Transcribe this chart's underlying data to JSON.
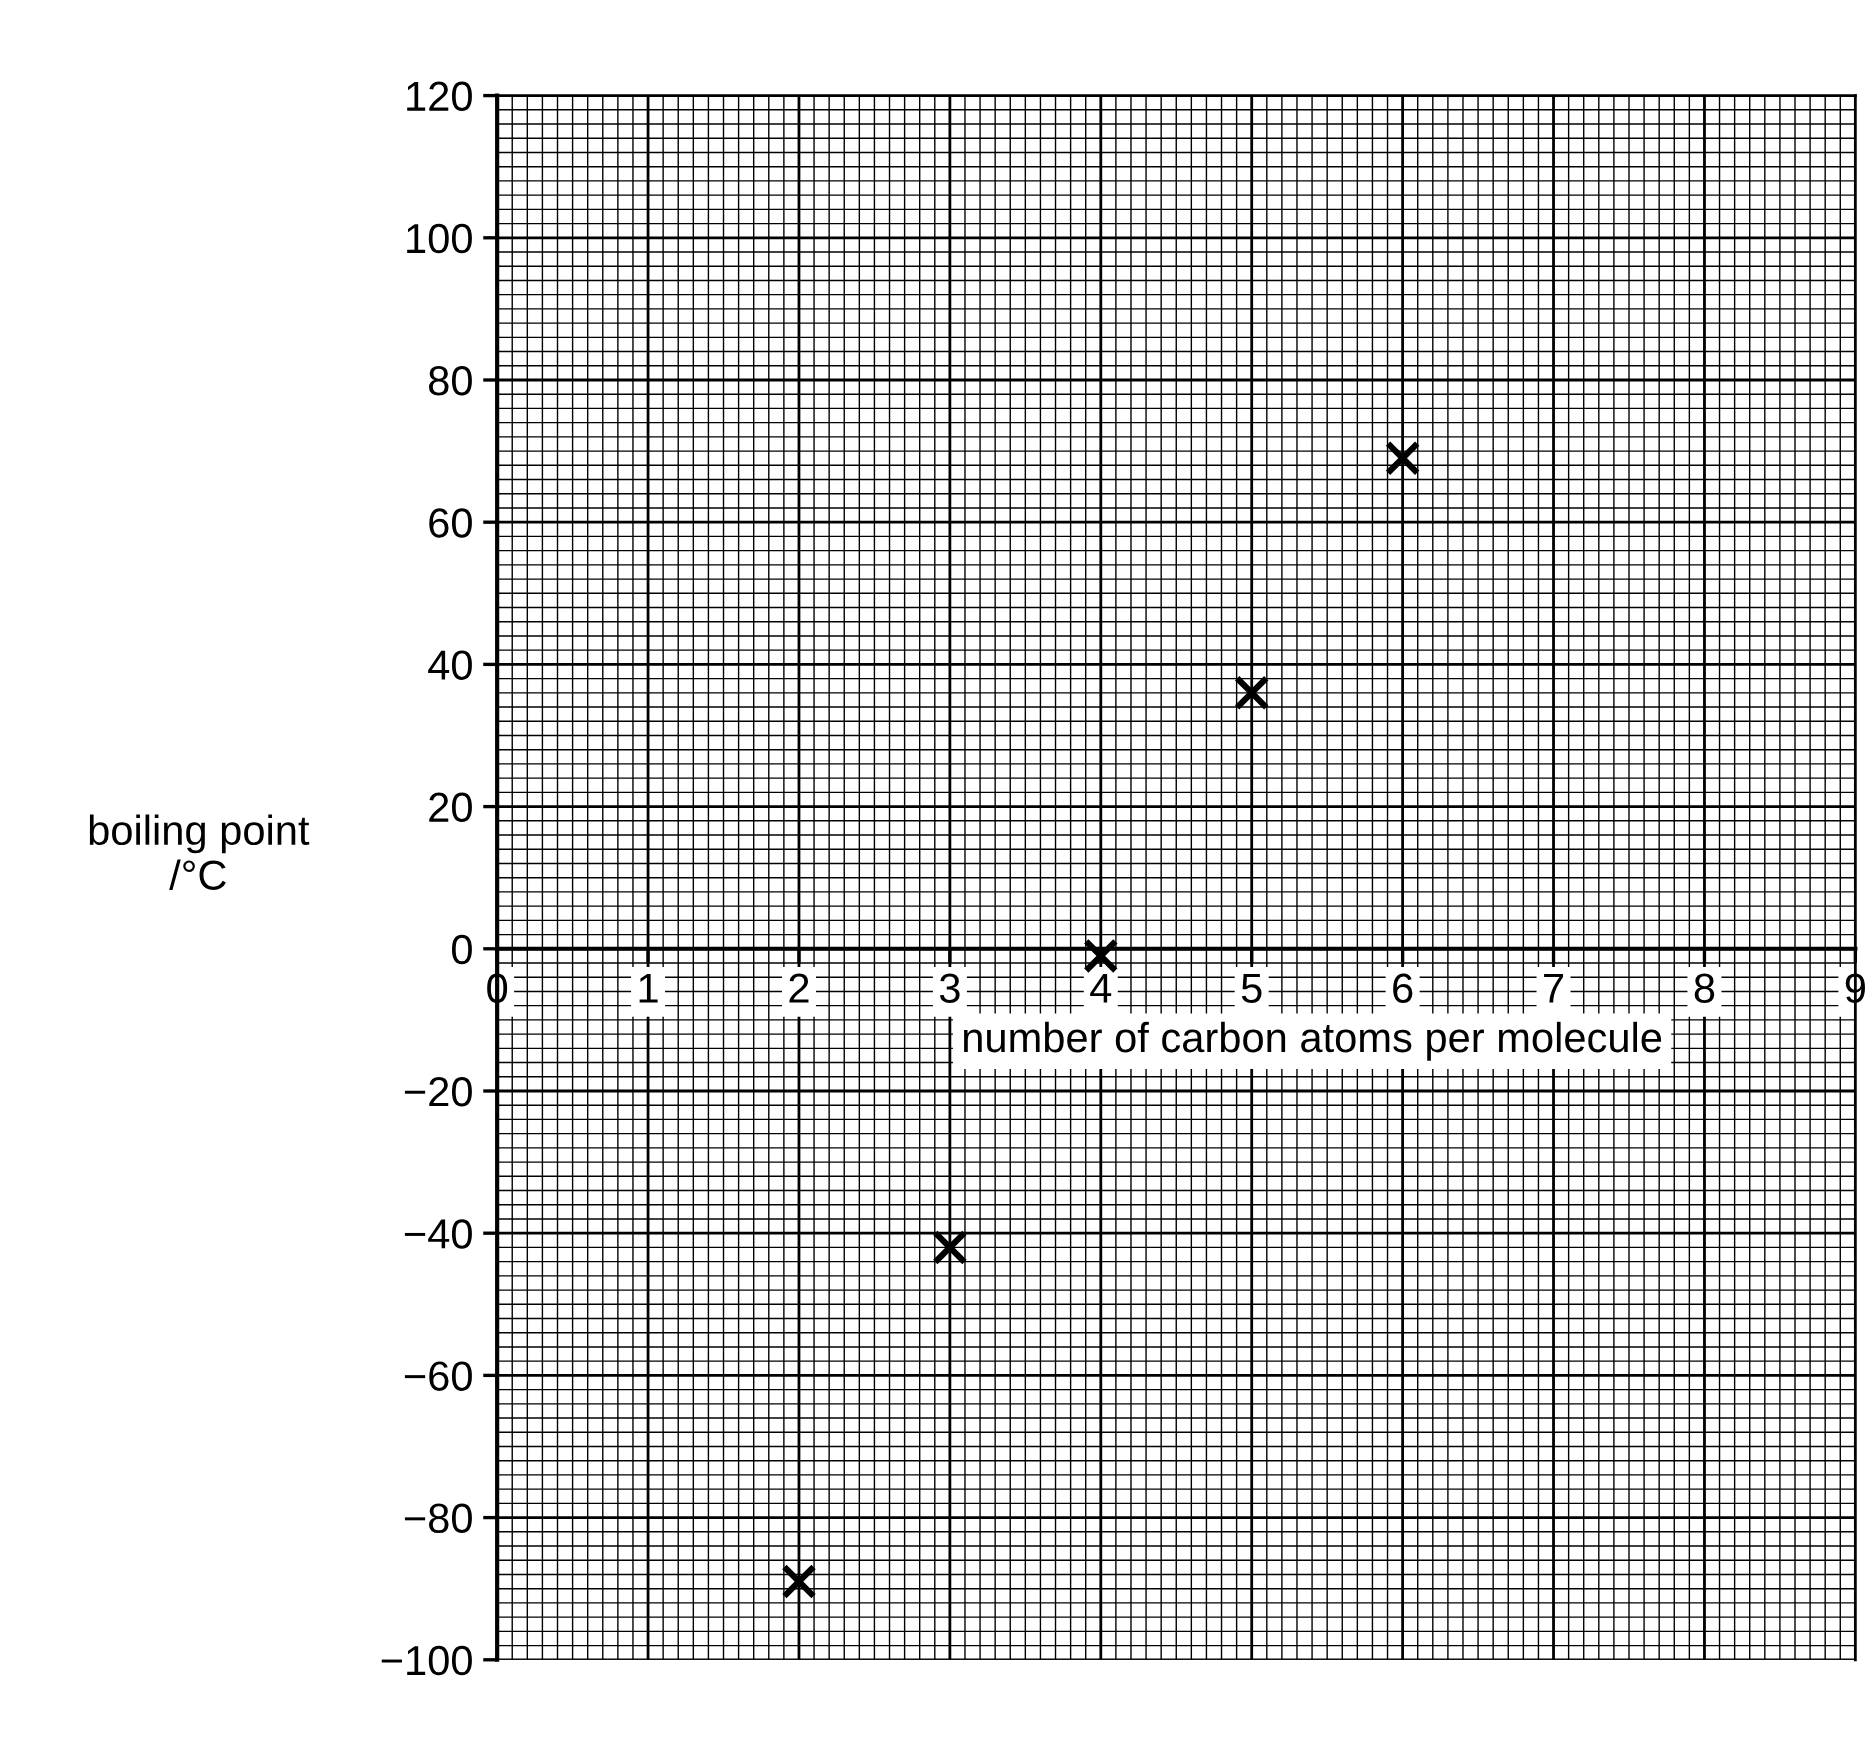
{
  "chart_data": {
    "type": "scatter",
    "xlabel": "number of carbon atoms per molecule",
    "ylabel": "boiling point\n/°C",
    "x": [
      2,
      3,
      4,
      5,
      6
    ],
    "values": [
      -89,
      -42,
      -1,
      36,
      69
    ],
    "color": "#000000",
    "marker": "cross",
    "grid": true,
    "xlim": [
      0,
      9
    ],
    "xticks": [
      0,
      1,
      2,
      3,
      4,
      5,
      6,
      7,
      8,
      9
    ],
    "ylim": [
      -100,
      120
    ],
    "yticks": [
      {
        "value": -100,
        "label": "−100"
      },
      {
        "value": -80,
        "label": "−80"
      },
      {
        "value": -60,
        "label": "−60"
      },
      {
        "value": -40,
        "label": "−40"
      },
      {
        "value": -20,
        "label": "−20"
      },
      0,
      20,
      40,
      60,
      80,
      100,
      120
    ]
  }
}
